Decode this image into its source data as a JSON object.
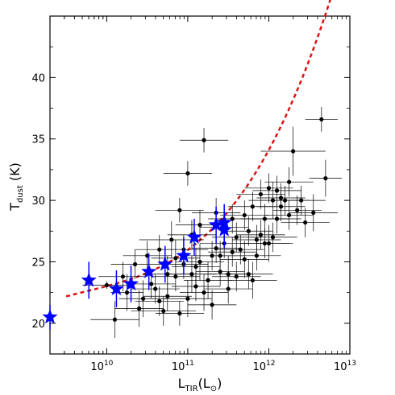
{
  "chart_data": {
    "type": "scatter",
    "title": "",
    "xlabel": {
      "main": "L",
      "sub": "TIR",
      "unit": "(L",
      "unit_sub": "⊙",
      "close": ")"
    },
    "ylabel": {
      "main": "T",
      "sub": "dust",
      "unit": " (K)"
    },
    "x_scale": "log",
    "xlim": [
      10,
      13
    ],
    "ylim": [
      17.5,
      45
    ],
    "x_ticks": [
      {
        "value": 10,
        "base": "10",
        "exp": "10"
      },
      {
        "value": 11,
        "base": "10",
        "exp": "11"
      },
      {
        "value": 12,
        "base": "10",
        "exp": "12"
      },
      {
        "value": 13,
        "base": "10",
        "exp": "13"
      }
    ],
    "y_ticks": [
      "20",
      "25",
      "30",
      "35",
      "40"
    ],
    "grid": false,
    "colors": {
      "points": "#000000",
      "stars": "#0000ff",
      "fit": "#dd1111"
    },
    "series_points": [
      [
        10.0,
        23.1,
        0.3,
        0.3
      ],
      [
        10.1,
        20.3,
        1.5,
        0.3
      ],
      [
        10.25,
        22.5,
        1.5,
        0.2
      ],
      [
        10.4,
        21.2,
        1.5,
        0.3
      ],
      [
        10.45,
        22.0,
        1.5,
        0.3
      ],
      [
        10.55,
        23.2,
        1.2,
        0.3
      ],
      [
        10.6,
        22.8,
        1.2,
        0.3
      ],
      [
        10.7,
        21.0,
        1.2,
        0.4
      ],
      [
        10.75,
        24.0,
        1.5,
        0.3
      ],
      [
        10.8,
        26.8,
        1.5,
        0.4
      ],
      [
        10.85,
        25.3,
        1.5,
        0.3
      ],
      [
        10.9,
        20.8,
        1.0,
        0.3
      ],
      [
        10.9,
        29.2,
        1.0,
        0.3
      ],
      [
        10.95,
        26.0,
        1.2,
        0.3
      ],
      [
        11.0,
        22.0,
        1.5,
        0.3
      ],
      [
        11.05,
        24.0,
        1.5,
        0.3
      ],
      [
        11.1,
        24.6,
        1.5,
        0.3
      ],
      [
        11.15,
        25.0,
        1.5,
        0.3
      ],
      [
        11.2,
        22.5,
        1.5,
        0.3
      ],
      [
        11.25,
        23.5,
        1.5,
        0.3
      ],
      [
        11.3,
        25.5,
        1.2,
        0.3
      ],
      [
        11.35,
        26.1,
        1.2,
        0.3
      ],
      [
        11.4,
        25.5,
        1.2,
        0.3
      ],
      [
        11.45,
        26.5,
        1.2,
        0.3
      ],
      [
        11.5,
        24.0,
        1.5,
        0.3
      ],
      [
        11.55,
        25.8,
        1.2,
        0.3
      ],
      [
        11.6,
        27.0,
        1.2,
        0.3
      ],
      [
        11.65,
        26.0,
        1.2,
        0.3
      ],
      [
        11.7,
        25.2,
        1.5,
        0.3
      ],
      [
        11.75,
        27.5,
        1.2,
        0.3
      ],
      [
        11.8,
        23.5,
        1.5,
        0.3
      ],
      [
        11.85,
        26.8,
        1.2,
        0.3
      ],
      [
        11.9,
        27.2,
        1.2,
        0.3
      ],
      [
        11.95,
        28.5,
        1.2,
        0.3
      ],
      [
        12.0,
        26.5,
        1.5,
        0.3
      ],
      [
        12.05,
        30.0,
        1.5,
        0.3
      ],
      [
        12.1,
        28.5,
        1.2,
        0.3
      ],
      [
        12.15,
        30.2,
        1.2,
        0.3
      ],
      [
        12.2,
        30.0,
        1.2,
        0.3
      ],
      [
        12.25,
        31.5,
        1.2,
        0.3
      ],
      [
        12.3,
        34.0,
        2.0,
        0.4
      ],
      [
        12.35,
        29.2,
        1.2,
        0.3
      ],
      [
        12.4,
        30.0,
        1.2,
        0.3
      ],
      [
        12.45,
        28.2,
        1.2,
        0.3
      ],
      [
        12.55,
        29.0,
        1.5,
        0.3
      ],
      [
        12.65,
        36.6,
        1.0,
        0.2
      ],
      [
        12.7,
        31.8,
        1.5,
        0.2
      ],
      [
        11.1,
        23.0,
        1.2,
        0.3
      ],
      [
        11.3,
        21.5,
        1.2,
        0.3
      ],
      [
        11.4,
        24.2,
        1.2,
        0.3
      ],
      [
        11.5,
        22.8,
        1.2,
        0.3
      ],
      [
        11.6,
        23.8,
        1.2,
        0.3
      ],
      [
        11.2,
        34.9,
        1.0,
        0.3
      ],
      [
        11.0,
        32.2,
        1.0,
        0.3
      ],
      [
        10.65,
        26.0,
        1.2,
        0.3
      ],
      [
        10.5,
        25.5,
        1.2,
        0.3
      ],
      [
        10.35,
        24.8,
        1.2,
        0.3
      ],
      [
        10.2,
        23.8,
        1.2,
        0.3
      ],
      [
        11.8,
        29.5,
        1.2,
        0.3
      ],
      [
        11.9,
        30.5,
        1.2,
        0.3
      ],
      [
        12.0,
        31.0,
        1.2,
        0.3
      ],
      [
        12.1,
        30.8,
        1.2,
        0.3
      ],
      [
        11.7,
        28.8,
        1.2,
        0.3
      ],
      [
        11.75,
        24.0,
        1.2,
        0.3
      ],
      [
        11.85,
        25.5,
        1.2,
        0.3
      ],
      [
        11.95,
        26.5,
        1.2,
        0.3
      ],
      [
        12.05,
        27.0,
        1.2,
        0.3
      ],
      [
        12.15,
        29.5,
        1.2,
        0.3
      ],
      [
        12.25,
        28.8,
        1.2,
        0.3
      ],
      [
        11.45,
        27.8,
        1.2,
        0.3
      ],
      [
        11.55,
        28.5,
        1.2,
        0.3
      ],
      [
        11.35,
        29.0,
        1.2,
        0.3
      ],
      [
        11.15,
        28.0,
        1.2,
        0.3
      ],
      [
        11.05,
        27.2,
        1.2,
        0.3
      ],
      [
        10.95,
        24.8,
        1.2,
        0.3
      ],
      [
        10.85,
        23.8,
        1.2,
        0.3
      ],
      [
        10.75,
        22.2,
        1.2,
        0.3
      ],
      [
        10.65,
        21.8,
        1.2,
        0.3
      ]
    ],
    "series_stars": [
      [
        9.3,
        20.5,
        1.0
      ],
      [
        9.78,
        23.5,
        1.5
      ],
      [
        10.12,
        22.8,
        1.5
      ],
      [
        10.3,
        23.2,
        1.5
      ],
      [
        10.52,
        24.2,
        1.5
      ],
      [
        10.72,
        24.8,
        1.5
      ],
      [
        10.95,
        25.5,
        1.5
      ],
      [
        11.08,
        27.0,
        1.5
      ],
      [
        11.35,
        28.0,
        1.5
      ],
      [
        11.45,
        27.6,
        1.5
      ],
      [
        11.45,
        28.2,
        1.5
      ]
    ],
    "fit_curve": {
      "x_start": 9.5,
      "x_end": 13.0,
      "coeffs": [
        18.54,
        0.3,
        -0.456,
        0.5
      ]
    }
  }
}
